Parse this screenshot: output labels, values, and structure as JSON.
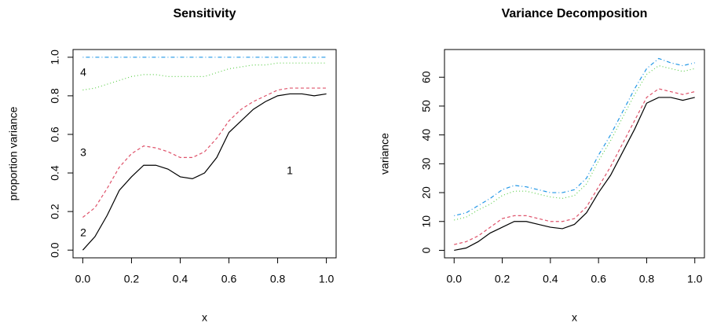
{
  "chart_data": [
    {
      "type": "line",
      "title": "Sensitivity",
      "x_label": "x",
      "y_label": "proportion variance",
      "x": [
        0,
        0.05,
        0.1,
        0.15,
        0.2,
        0.25,
        0.3,
        0.35,
        0.4,
        0.45,
        0.5,
        0.55,
        0.6,
        0.65,
        0.7,
        0.75,
        0.8,
        0.85,
        0.9,
        0.95,
        1
      ],
      "series": [
        {
          "color": "#000000",
          "dash": "solid",
          "values": [
            0,
            0.07,
            0.18,
            0.31,
            0.38,
            0.44,
            0.44,
            0.42,
            0.38,
            0.37,
            0.4,
            0.48,
            0.61,
            0.67,
            0.73,
            0.77,
            0.8,
            0.81,
            0.81,
            0.8,
            0.81
          ]
        },
        {
          "color": "#DF536B",
          "dash": "dashed",
          "values": [
            0.17,
            0.22,
            0.32,
            0.43,
            0.5,
            0.54,
            0.53,
            0.51,
            0.48,
            0.48,
            0.51,
            0.58,
            0.67,
            0.73,
            0.77,
            0.8,
            0.83,
            0.84,
            0.84,
            0.84,
            0.84
          ]
        },
        {
          "color": "#61D04F",
          "dash": "dotted",
          "values": [
            0.83,
            0.84,
            0.86,
            0.88,
            0.9,
            0.91,
            0.91,
            0.9,
            0.9,
            0.9,
            0.9,
            0.92,
            0.94,
            0.95,
            0.96,
            0.96,
            0.97,
            0.97,
            0.97,
            0.97,
            0.97
          ]
        },
        {
          "color": "#2297E6",
          "dash": "dotdash",
          "values": [
            1,
            1,
            1,
            1,
            1,
            1,
            1,
            1,
            1,
            1,
            1,
            1,
            1,
            1,
            1,
            1,
            1,
            1,
            1,
            1,
            1
          ]
        }
      ],
      "annotations": [
        "4",
        "3",
        "2",
        "1"
      ],
      "xlim": [
        -0.04,
        1.04
      ],
      "ylim": [
        -0.04,
        1.04
      ],
      "xticks": [
        {
          "value": 0,
          "label": "0.0"
        },
        0.2,
        0.4,
        0.6,
        0.8,
        {
          "value": 1,
          "label": "1.0"
        }
      ],
      "yticks": [
        {
          "value": 0,
          "label": "0.0"
        },
        0.2,
        0.4,
        0.6,
        0.8,
        {
          "value": 1,
          "label": "1.0"
        }
      ]
    },
    {
      "type": "line",
      "title": "Variance Decomposition",
      "x_label": "x",
      "y_label": "variance",
      "x": [
        0,
        0.05,
        0.1,
        0.15,
        0.2,
        0.25,
        0.3,
        0.35,
        0.4,
        0.45,
        0.5,
        0.55,
        0.6,
        0.65,
        0.7,
        0.75,
        0.8,
        0.85,
        0.9,
        0.95,
        1
      ],
      "series": [
        {
          "color": "#000000",
          "dash": "solid",
          "values": [
            0,
            0.8,
            3,
            6,
            8,
            10,
            10,
            9,
            8,
            7.5,
            9,
            13,
            20,
            26,
            34,
            42,
            51,
            53,
            53,
            52,
            53
          ]
        },
        {
          "color": "#DF536B",
          "dash": "dashed",
          "values": [
            2,
            3,
            5,
            8,
            11,
            12,
            12,
            11,
            10,
            10,
            11,
            15,
            22,
            29,
            37,
            45,
            53,
            56,
            55,
            54,
            55
          ]
        },
        {
          "color": "#61D04F",
          "dash": "dotted",
          "values": [
            10.5,
            11.5,
            14,
            16,
            19,
            20.5,
            20.5,
            19.5,
            18.5,
            18,
            19,
            23,
            31,
            38,
            46,
            54,
            61,
            64,
            63,
            62,
            63
          ]
        },
        {
          "color": "#2297E6",
          "dash": "dotdash",
          "values": [
            12,
            13,
            15.5,
            18,
            21,
            22.5,
            22,
            21,
            20,
            20,
            21,
            25,
            33,
            40,
            48,
            56,
            63,
            66.5,
            65,
            64,
            65
          ]
        }
      ],
      "xlim": [
        -0.04,
        1.04
      ],
      "ylim": [
        -2.6,
        69.6
      ],
      "xticks": [
        {
          "value": 0,
          "label": "0.0"
        },
        0.2,
        0.4,
        0.6,
        0.8,
        {
          "value": 1,
          "label": "1.0"
        }
      ],
      "yticks": [
        0,
        10,
        20,
        30,
        40,
        50,
        60
      ]
    }
  ]
}
